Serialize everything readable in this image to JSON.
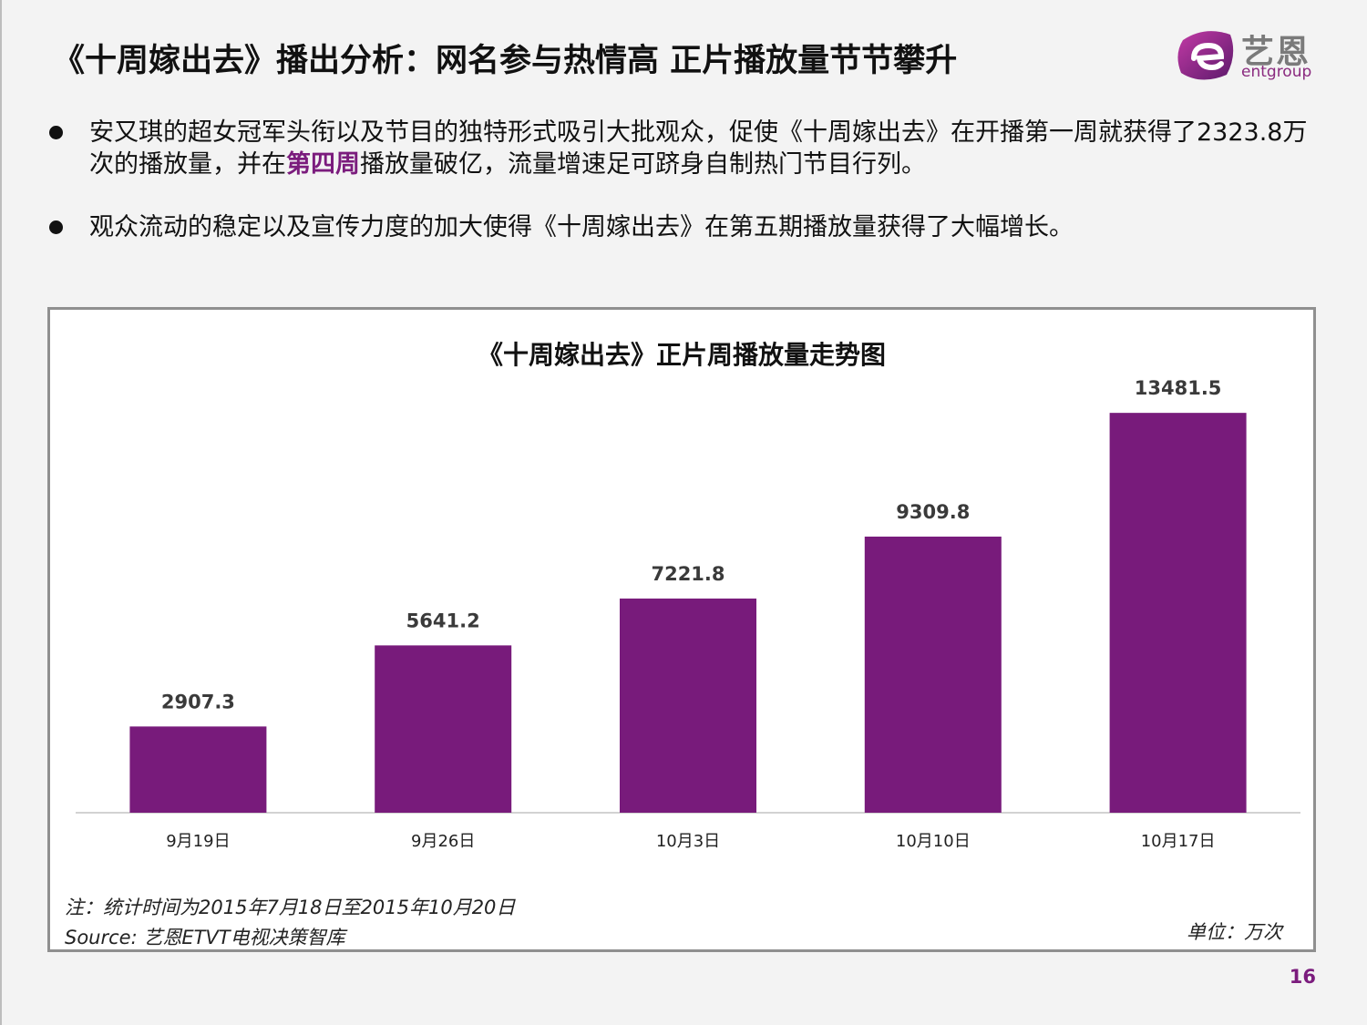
{
  "header": {
    "title": "《十周嫁出去》播出分析：网名参与热情高  正片播放量节节攀升",
    "logo_text": "艺恩",
    "logo_sub": "entgroup"
  },
  "bullets": [
    {
      "before": "安又琪的超女冠军头衔以及节目的独特形式吸引大批观众，促使《十周嫁出去》在开播第一周就获得了2323.8万次的播放量，并在",
      "highlight": "第四周",
      "after": "播放量破亿，流量增速足可跻身自制热门节目行列。"
    },
    {
      "before": "观众流动的稳定以及宣传力度的加大使得《十周嫁出去》在第五期播放量获得了大幅增长。",
      "highlight": "",
      "after": ""
    }
  ],
  "chart_data": {
    "type": "bar",
    "title": "《十周嫁出去》正片周播放量走势图",
    "categories": [
      "9月19日",
      "9月26日",
      "10月3日",
      "10月10日",
      "10月17日"
    ],
    "values": [
      2907.3,
      5641.2,
      7221.8,
      9309.8,
      13481.5
    ],
    "value_labels": [
      "2907.3",
      "5641.2",
      "7221.8",
      "9309.8",
      "13481.5"
    ],
    "bar_color": "#781b7b",
    "ylim": [
      0,
      14500
    ],
    "grid": false,
    "legend": "none"
  },
  "footer": {
    "note": "注：统计时间为2015年7月18日至2015年10月20日",
    "source": "Source: 艺恩ETVT电视决策智库",
    "unit": "单位：万次",
    "page_number": "16"
  },
  "colors": {
    "accent": "#7b1c7d",
    "background": "#f3f3f3"
  }
}
